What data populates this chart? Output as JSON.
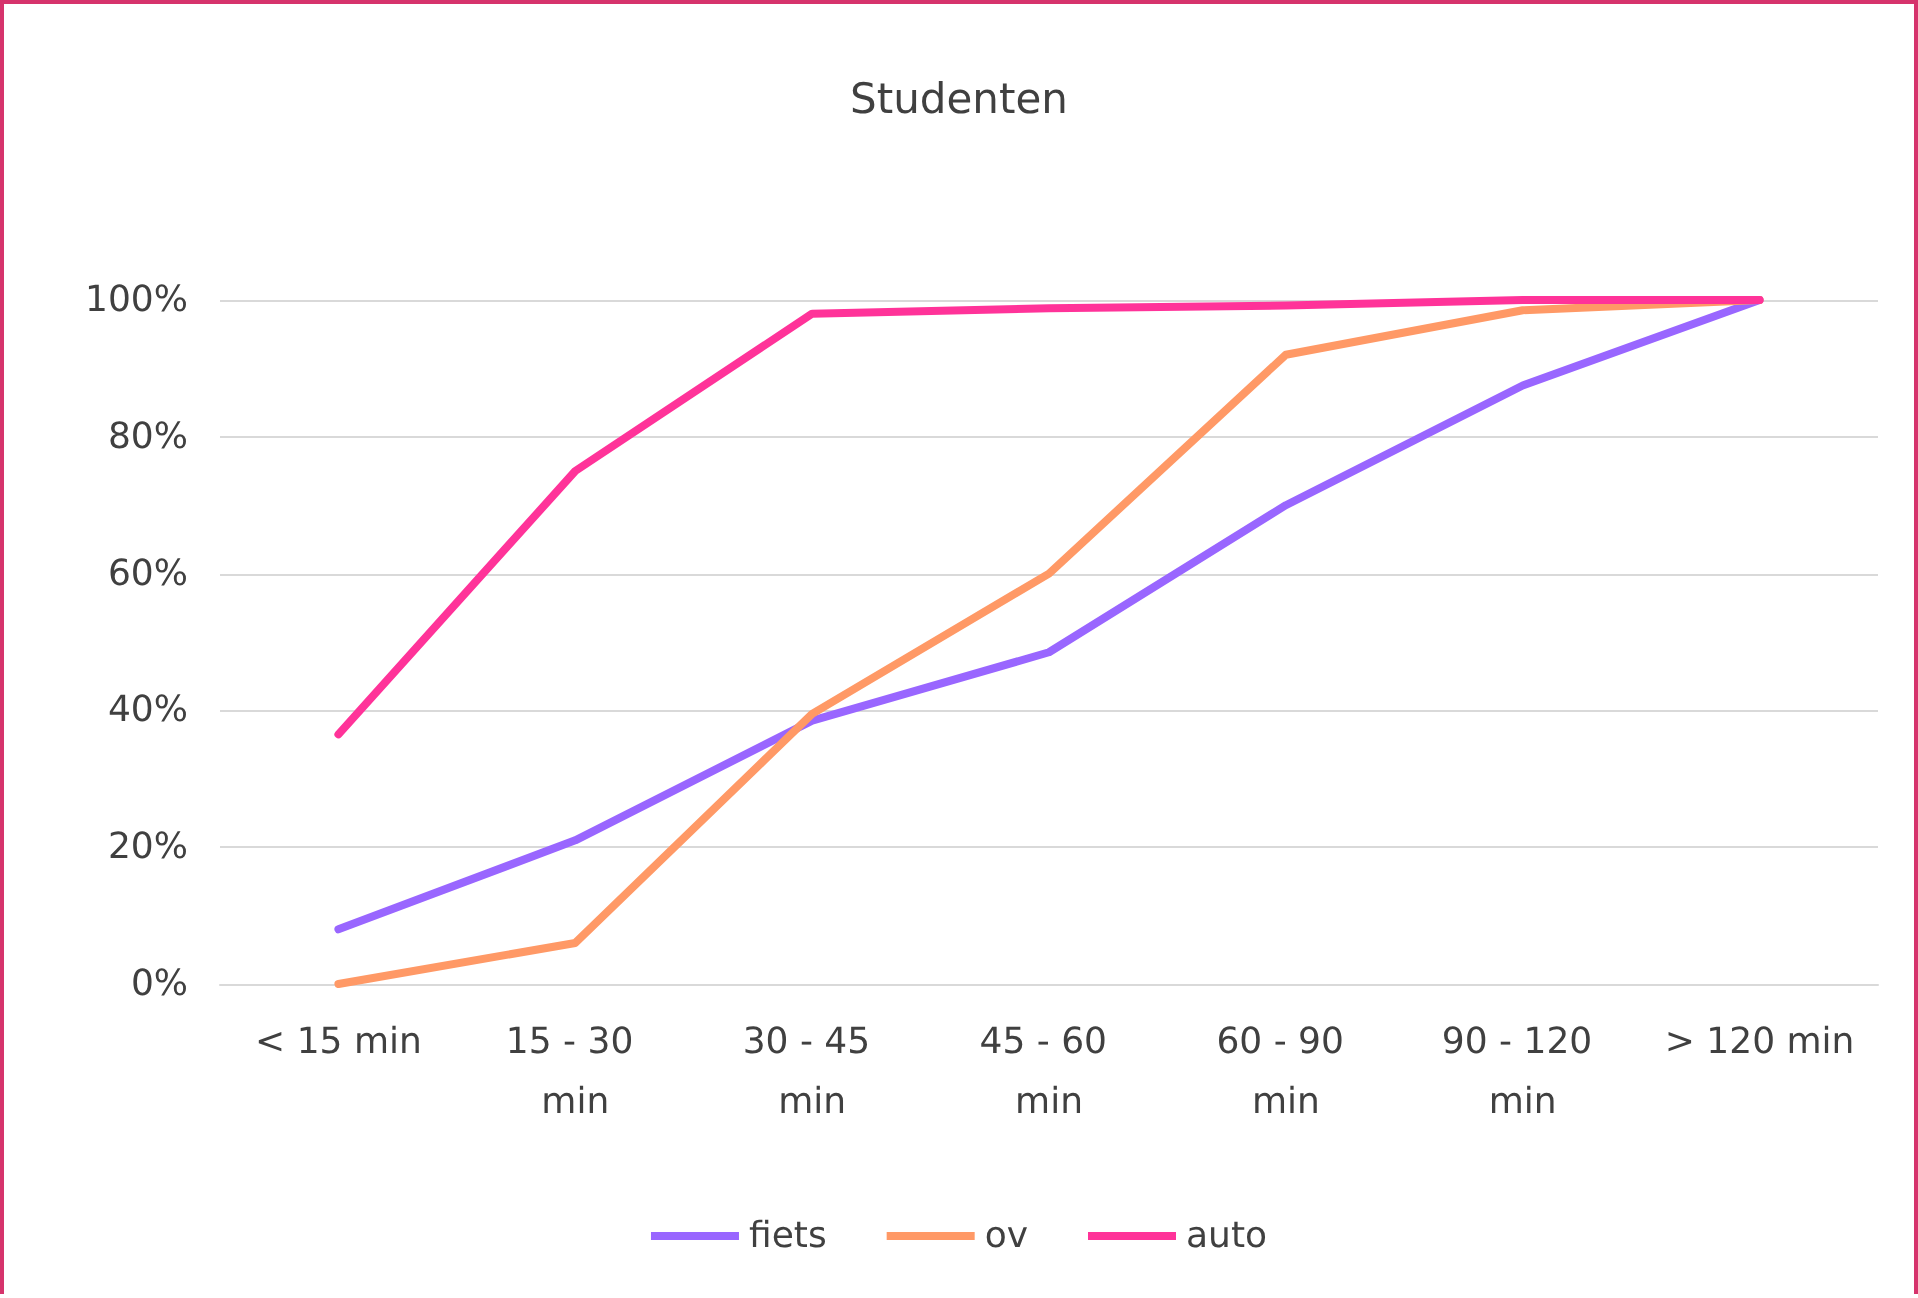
{
  "chart_data": {
    "type": "line",
    "title": "Studenten",
    "categories": [
      "< 15 min",
      "15 - 30 min",
      "30 - 45 min",
      "45 - 60 min",
      "60 - 90 min",
      "90 - 120 min",
      "> 120 min"
    ],
    "series": [
      {
        "name": "fiets",
        "color": "#9966ff",
        "values": [
          8,
          21,
          38.5,
          48.5,
          70,
          87.5,
          100
        ]
      },
      {
        "name": "ov",
        "color": "#ff9966",
        "values": [
          0,
          6,
          39.5,
          60,
          92,
          98.5,
          100
        ]
      },
      {
        "name": "auto",
        "color": "#ff3399",
        "values": [
          36.5,
          75,
          98,
          98.8,
          99.2,
          100,
          100
        ]
      }
    ],
    "ylim": [
      0,
      100
    ],
    "yticks": [
      {
        "value": 0,
        "label": "0%"
      },
      {
        "value": 20,
        "label": "20%"
      },
      {
        "value": 40,
        "label": "40%"
      },
      {
        "value": 60,
        "label": "60%"
      },
      {
        "value": 80,
        "label": "80%"
      },
      {
        "value": 100,
        "label": "100%"
      }
    ],
    "grid": "y",
    "legend": "bottom",
    "marker": "none",
    "line_style": "solid"
  }
}
